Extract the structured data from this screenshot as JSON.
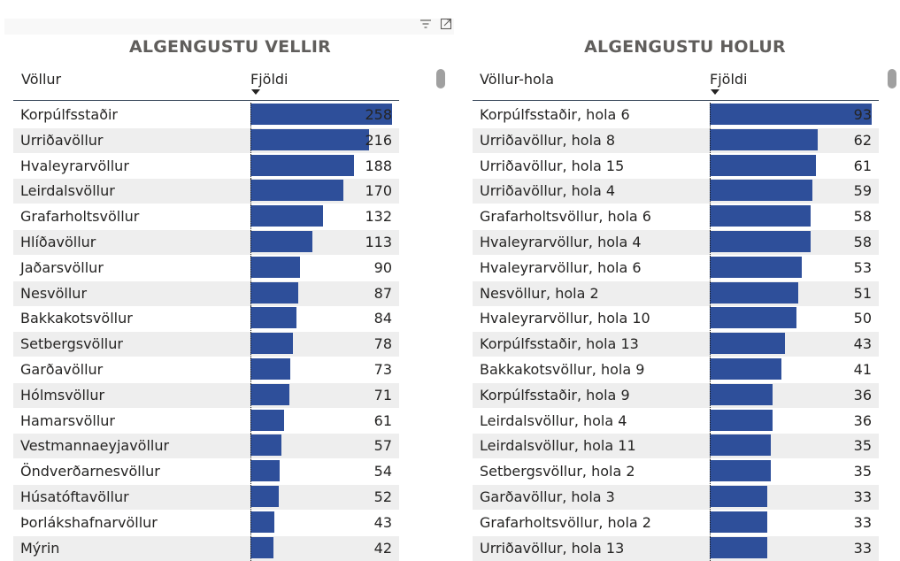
{
  "colors": {
    "bar": "#2e4f9a",
    "title": "#605e5c",
    "row_alt": "#eeeeee"
  },
  "header_icons": [
    "filter-icon",
    "focus-mode-icon"
  ],
  "left": {
    "title": "ALGENGUSTU VELLIR",
    "col1": "Völlur",
    "col2": "Fjöldi",
    "sort": "descending",
    "max": 258,
    "rows": [
      {
        "label": "Korpúlfsstaðir",
        "value": 258
      },
      {
        "label": "Urriðavöllur",
        "value": 216
      },
      {
        "label": "Hvaleyrarvöllur",
        "value": 188
      },
      {
        "label": "Leirdalsvöllur",
        "value": 170
      },
      {
        "label": "Grafarholtsvöllur",
        "value": 132
      },
      {
        "label": "Hlíðavöllur",
        "value": 113
      },
      {
        "label": "Jaðarsvöllur",
        "value": 90
      },
      {
        "label": "Nesvöllur",
        "value": 87
      },
      {
        "label": "Bakkakotsvöllur",
        "value": 84
      },
      {
        "label": "Setbergsvöllur",
        "value": 78
      },
      {
        "label": "Garðavöllur",
        "value": 73
      },
      {
        "label": "Hólmsvöllur",
        "value": 71
      },
      {
        "label": "Hamarsvöllur",
        "value": 61
      },
      {
        "label": "Vestmannaeyjavöllur",
        "value": 57
      },
      {
        "label": "Öndverðarnesvöllur",
        "value": 54
      },
      {
        "label": "Húsatóftavöllur",
        "value": 52
      },
      {
        "label": "Þorlákshafnarvöllur",
        "value": 43
      },
      {
        "label": "Mýrin",
        "value": 42
      }
    ]
  },
  "right": {
    "title": "ALGENGUSTU HOLUR",
    "col1": "Völlur-hola",
    "col2": "Fjöldi",
    "sort": "descending",
    "max": 93,
    "rows": [
      {
        "label": "Korpúlfsstaðir, hola 6",
        "value": 93
      },
      {
        "label": "Urriðavöllur, hola 8",
        "value": 62
      },
      {
        "label": "Urriðavöllur, hola 15",
        "value": 61
      },
      {
        "label": "Urriðavöllur, hola 4",
        "value": 59
      },
      {
        "label": "Grafarholtsvöllur, hola 6",
        "value": 58
      },
      {
        "label": "Hvaleyrarvöllur, hola 4",
        "value": 58
      },
      {
        "label": "Hvaleyrarvöllur, hola 6",
        "value": 53
      },
      {
        "label": "Nesvöllur, hola 2",
        "value": 51
      },
      {
        "label": "Hvaleyrarvöllur, hola 10",
        "value": 50
      },
      {
        "label": "Korpúlfsstaðir, hola 13",
        "value": 43
      },
      {
        "label": "Bakkakotsvöllur, hola 9",
        "value": 41
      },
      {
        "label": "Korpúlfsstaðir, hola 9",
        "value": 36
      },
      {
        "label": "Leirdalsvöllur, hola 4",
        "value": 36
      },
      {
        "label": "Leirdalsvöllur, hola 11",
        "value": 35
      },
      {
        "label": "Setbergsvöllur, hola 2",
        "value": 35
      },
      {
        "label": "Garðavöllur, hola 3",
        "value": 33
      },
      {
        "label": "Grafarholtsvöllur, hola 2",
        "value": 33
      },
      {
        "label": "Urriðavöllur, hola 13",
        "value": 33
      }
    ]
  }
}
